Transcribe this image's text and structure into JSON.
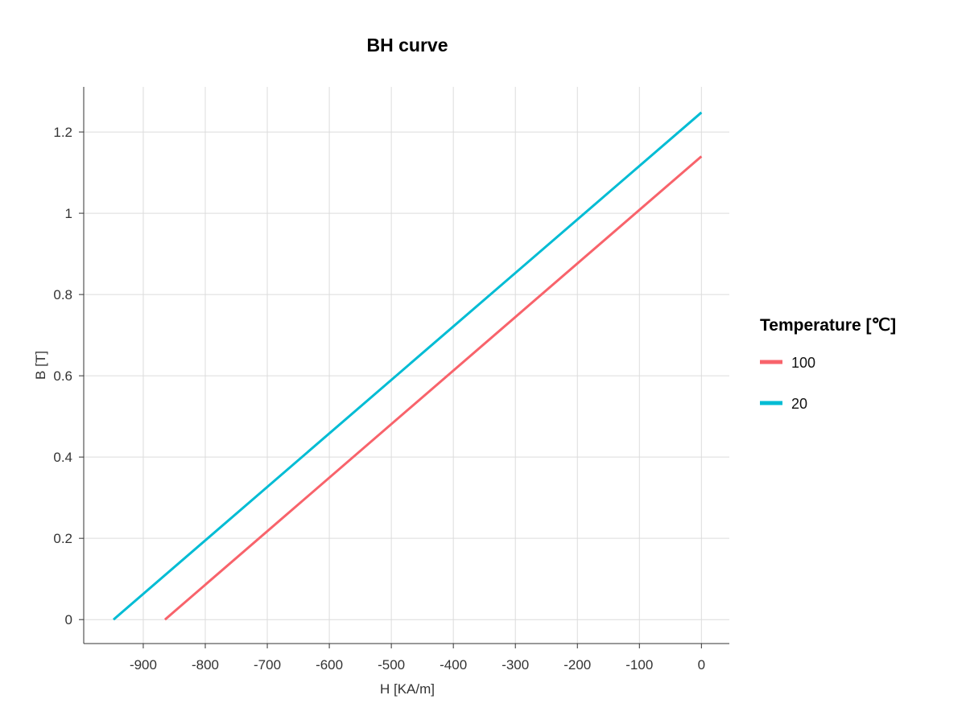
{
  "chart_data": {
    "type": "line",
    "title": "BH curve",
    "xlabel": "H [KA/m]",
    "ylabel": "B [T]",
    "xlim": [
      -996,
      45
    ],
    "ylim": [
      -0.059,
      1.311
    ],
    "xticks": [
      -900,
      -800,
      -700,
      -600,
      -500,
      -400,
      -300,
      -200,
      -100,
      0
    ],
    "xtick_labels": [
      "-900",
      "-800",
      "-700",
      "-600",
      "-500",
      "-400",
      "-300",
      "-200",
      "-100",
      "0"
    ],
    "yticks": [
      0,
      0.2,
      0.4,
      0.6,
      0.8,
      1,
      1.2
    ],
    "ytick_labels": [
      "0",
      "0.2",
      "0.4",
      "0.6",
      "0.8",
      "1",
      "1.2"
    ],
    "grid": true,
    "legend": {
      "title": "Temperature [℃]",
      "placement": "right"
    },
    "series": [
      {
        "name": "100",
        "color": "#F8636B",
        "x": [
          -865,
          0
        ],
        "y": [
          0,
          1.14
        ]
      },
      {
        "name": "20",
        "color": "#00BCD4",
        "x": [
          -948,
          0
        ],
        "y": [
          0,
          1.248
        ]
      }
    ]
  }
}
